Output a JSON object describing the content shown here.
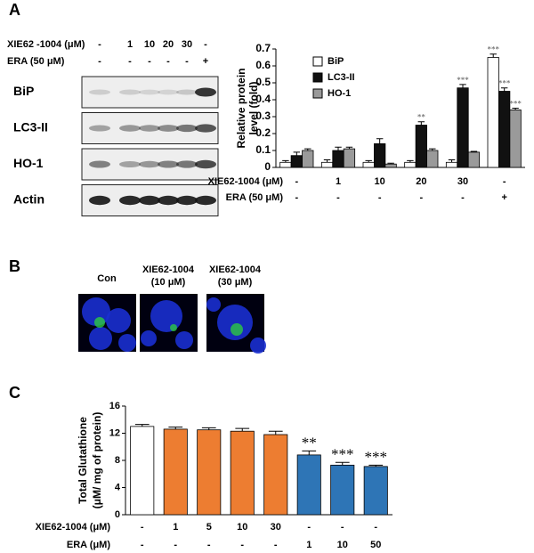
{
  "panels": [
    "A",
    "B",
    "C"
  ],
  "blot": {
    "treatments": [
      {
        "label": "XIE62 -1004 (μM)",
        "values": [
          "-",
          "1",
          "10",
          "20",
          "30",
          "-"
        ]
      },
      {
        "label": "ERA (50 μM)",
        "values": [
          "-",
          "-",
          "-",
          "-",
          "-",
          "+"
        ]
      }
    ],
    "bands": [
      "BiP",
      "LC3-II",
      "HO-1",
      "Actin"
    ]
  },
  "microscopy": {
    "images": [
      {
        "label": [
          "Con"
        ]
      },
      {
        "label": [
          "XIE62-1004",
          "(10 μM)"
        ]
      },
      {
        "label": [
          "XIE62-1004",
          "(30 μM)"
        ]
      }
    ]
  },
  "chart_data": [
    {
      "type": "bar",
      "y_label": [
        "Relative protein",
        "level (fold)"
      ],
      "category_rows": [
        {
          "label": "XIE62-1004 (μM)",
          "values": [
            "-",
            "1",
            "10",
            "20",
            "30",
            "-"
          ]
        },
        {
          "label": "ERA (50 μM)",
          "values": [
            "-",
            "-",
            "-",
            "-",
            "-",
            "+"
          ]
        }
      ],
      "series": [
        {
          "name": "BiP",
          "color": "#ffffff",
          "values": [
            0.03,
            0.03,
            0.03,
            0.03,
            0.03,
            0.65
          ],
          "errors": [
            0.01,
            0.015,
            0.01,
            0.01,
            0.015,
            0.02
          ],
          "significance": [
            null,
            null,
            null,
            null,
            null,
            "***"
          ]
        },
        {
          "name": "LC3-II",
          "color": "#111111",
          "values": [
            0.07,
            0.1,
            0.14,
            0.25,
            0.47,
            0.45
          ],
          "errors": [
            0.02,
            0.02,
            0.03,
            0.02,
            0.02,
            0.02
          ],
          "significance": [
            null,
            null,
            null,
            "**",
            "***",
            "***"
          ]
        },
        {
          "name": "HO-1",
          "color": "#9a9a9a",
          "values": [
            0.1,
            0.11,
            0.02,
            0.1,
            0.09,
            0.34
          ],
          "errors": [
            0.01,
            0.01,
            0.005,
            0.01,
            0.005,
            0.01
          ],
          "significance": [
            null,
            null,
            null,
            null,
            null,
            "***"
          ]
        }
      ],
      "ylim": [
        0,
        0.7
      ],
      "yticks": [
        0,
        0.1,
        0.2,
        0.3,
        0.4,
        0.5,
        0.6,
        0.7
      ],
      "legend": "upper-left"
    },
    {
      "type": "bar",
      "y_label": [
        "Total Glutathione",
        "(μM/ mg of protein)"
      ],
      "category_rows": [
        {
          "label": "XIE62-1004 (μM)",
          "values": [
            "-",
            "1",
            "5",
            "10",
            "30",
            "-",
            "-",
            "-"
          ]
        },
        {
          "label": "ERA (μM)",
          "values": [
            "-",
            "-",
            "-",
            "-",
            "-",
            "1",
            "10",
            "50"
          ]
        }
      ],
      "series": [
        {
          "colors": [
            "#ffffff",
            "#ed7d31",
            "#ed7d31",
            "#ed7d31",
            "#ed7d31",
            "#2e75b6",
            "#2e75b6",
            "#2e75b6"
          ],
          "values": [
            13.0,
            12.6,
            12.5,
            12.3,
            11.8,
            8.8,
            7.3,
            7.1
          ],
          "errors": [
            0.3,
            0.3,
            0.3,
            0.4,
            0.5,
            0.6,
            0.4,
            0.2
          ],
          "significance": [
            null,
            null,
            null,
            null,
            null,
            "**",
            "***",
            "***"
          ]
        }
      ],
      "ylim": [
        0,
        16
      ],
      "yticks": [
        0,
        4,
        8,
        12,
        16
      ]
    }
  ]
}
